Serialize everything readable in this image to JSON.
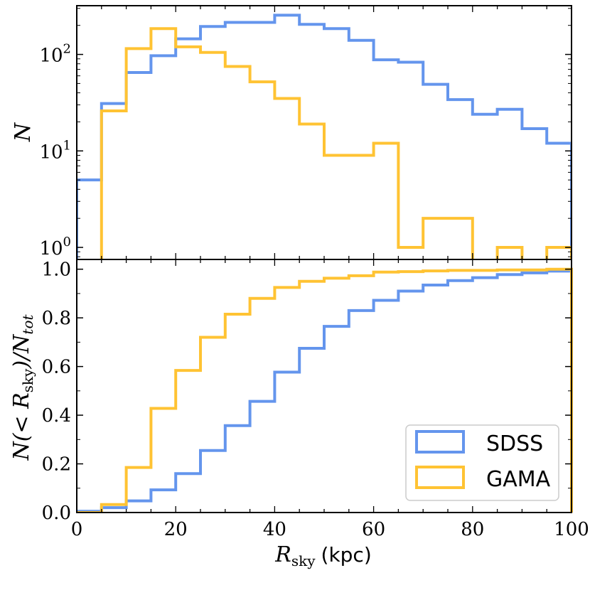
{
  "chart_data": [
    {
      "type": "histogram",
      "panel": "top",
      "yscale": "log",
      "ylabel": "N",
      "xlim": [
        0,
        100
      ],
      "ylim": [
        0.75,
        320
      ],
      "bin_edges": [
        0,
        5,
        10,
        15,
        20,
        25,
        30,
        35,
        40,
        45,
        50,
        55,
        60,
        65,
        70,
        75,
        80,
        85,
        90,
        95,
        100
      ],
      "ytick_values": [
        1,
        10,
        100
      ],
      "ytick_labels": [
        {
          "base": "10",
          "exp": "0"
        },
        {
          "base": "10",
          "exp": "1"
        },
        {
          "base": "10",
          "exp": "2"
        }
      ],
      "series": [
        {
          "name": "SDSS",
          "color": "#6495ED",
          "values": [
            5,
            31,
            65,
            97,
            145,
            195,
            215,
            215,
            255,
            205,
            185,
            140,
            88,
            83,
            49,
            34,
            24,
            27,
            17,
            12
          ]
        },
        {
          "name": "GAMA",
          "color": "#FFC333",
          "values": [
            0,
            26,
            115,
            185,
            120,
            105,
            75,
            52,
            35,
            19,
            9,
            9,
            12,
            1,
            2,
            2,
            0,
            1,
            0,
            1
          ]
        }
      ]
    },
    {
      "type": "histogram",
      "panel": "bottom",
      "cumulative": true,
      "ylabel": "N(< R_sky)/N_tot",
      "xlabel": "R_sky (kpc)",
      "xlim": [
        0,
        100
      ],
      "ylim": [
        0,
        1.04
      ],
      "xticks": [
        0,
        20,
        40,
        60,
        80,
        100
      ],
      "xtick_labels": [
        "0",
        "20",
        "40",
        "60",
        "80",
        "100"
      ],
      "yticks": [
        0,
        0.2,
        0.4,
        0.6,
        0.8,
        1.0
      ],
      "ytick_labels": [
        "0.0",
        "0.2",
        "0.4",
        "0.6",
        "0.8",
        "1.0"
      ],
      "bin_edges": [
        0,
        5,
        10,
        15,
        20,
        25,
        30,
        35,
        40,
        45,
        50,
        55,
        60,
        65,
        70,
        75,
        80,
        85,
        90,
        95,
        100
      ],
      "legend_position": "lower right",
      "series": [
        {
          "name": "SDSS",
          "color": "#6495ED",
          "values": [
            0.005,
            0.02,
            0.048,
            0.093,
            0.16,
            0.255,
            0.357,
            0.457,
            0.577,
            0.675,
            0.765,
            0.83,
            0.872,
            0.91,
            0.935,
            0.953,
            0.965,
            0.978,
            0.985,
            0.992
          ]
        },
        {
          "name": "GAMA",
          "color": "#FFC333",
          "values": [
            0.0,
            0.033,
            0.185,
            0.428,
            0.584,
            0.72,
            0.815,
            0.88,
            0.925,
            0.95,
            0.963,
            0.973,
            0.988,
            0.99,
            0.993,
            0.995,
            0.995,
            0.997,
            0.997,
            1.0
          ]
        }
      ]
    }
  ],
  "labels": {
    "top_ylabel": "N",
    "bottom_ylabel": "N(< R",
    "bottom_ylabel_sub": "sky",
    "bottom_ylabel_tail": ")/N",
    "bottom_ylabel_sub2": "tot",
    "xlabel_main": "R",
    "xlabel_sub": "sky",
    "xlabel_unit": "(kpc)"
  },
  "legend": [
    {
      "label": "SDSS",
      "color": "#6495ED"
    },
    {
      "label": "GAMA",
      "color": "#FFC333"
    }
  ]
}
